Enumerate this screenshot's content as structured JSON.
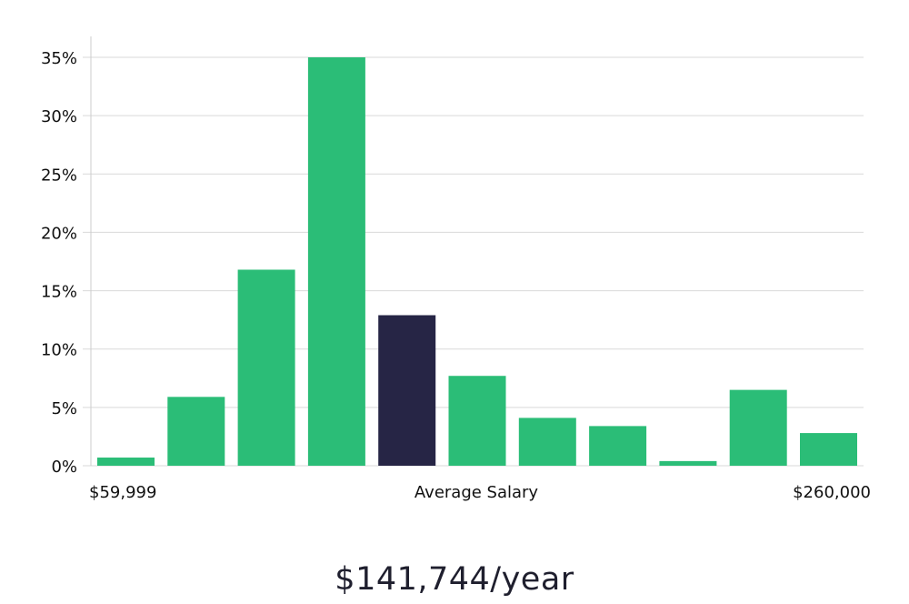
{
  "chart_data": {
    "type": "bar",
    "values": [
      0.7,
      5.9,
      16.8,
      35.0,
      12.9,
      7.7,
      4.1,
      3.4,
      0.4,
      6.5,
      2.8
    ],
    "highlight_index": 4,
    "yticks": [
      "0%",
      "5%",
      "10%",
      "15%",
      "20%",
      "25%",
      "30%",
      "35%"
    ],
    "ylim": [
      0,
      35
    ],
    "grid": true,
    "x_left_label": "$59,999",
    "x_center_label": "Average Salary",
    "x_right_label": "$260,000",
    "colors": {
      "bar": "#2bbd77",
      "highlight": "#262545",
      "grid": "#d9d9d9",
      "axis": "#cccccc"
    }
  },
  "salary": {
    "text": "$141,744/year"
  }
}
